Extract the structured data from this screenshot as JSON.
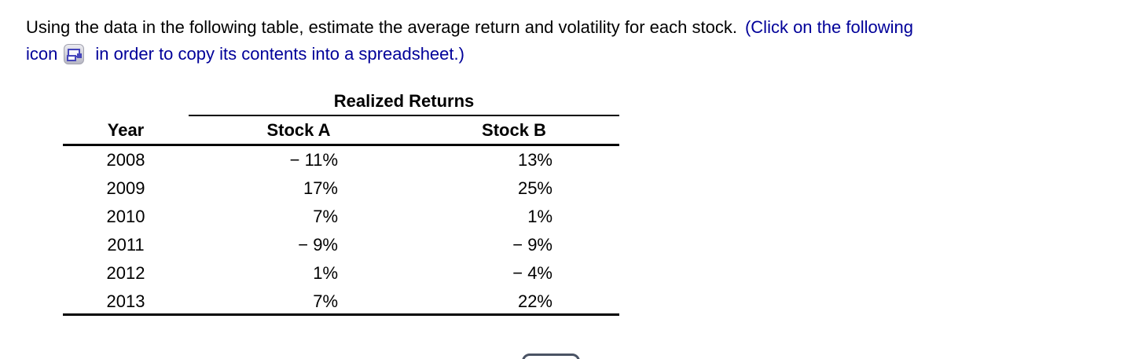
{
  "question": {
    "sentence": "Using the data in the following table, estimate the average return and volatility for each stock.",
    "click_note_line1": "(Click on the following",
    "click_note_line2_pre": "icon",
    "click_note_line2_post": "in order to copy its contents into a spreadsheet.)"
  },
  "table": {
    "group_header": "Realized Returns",
    "columns": {
      "year": "Year",
      "stock_a": "Stock A",
      "stock_b": "Stock B"
    },
    "rows": [
      {
        "year": "2008",
        "stock_a": "− 11%",
        "stock_b": "13%"
      },
      {
        "year": "2009",
        "stock_a": "17%",
        "stock_b": "25%"
      },
      {
        "year": "2010",
        "stock_a": "7%",
        "stock_b": "1%"
      },
      {
        "year": "2011",
        "stock_a": "− 9%",
        "stock_b": "− 9%"
      },
      {
        "year": "2012",
        "stock_a": "1%",
        "stock_b": "− 4%"
      },
      {
        "year": "2013",
        "stock_a": "7%",
        "stock_b": "22%"
      }
    ]
  },
  "icons": {
    "copy_icon": "copy-table-to-spreadsheet-icon"
  },
  "colors": {
    "link_blue": "#000099",
    "button_slate": "#4a5364",
    "text_black": "#000000"
  }
}
